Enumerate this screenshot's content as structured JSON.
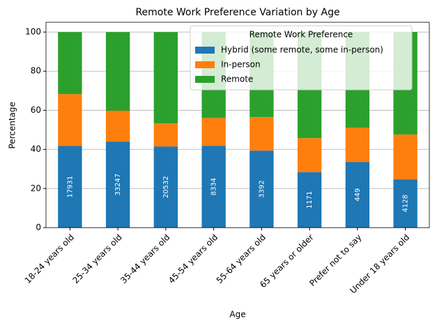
{
  "chart_data": {
    "type": "stacked_bar",
    "title": "Remote Work Preference Variation by Age",
    "x_label": "Age",
    "y_label": "Percentage",
    "categories": [
      "18-24 years old",
      "25-34 years old",
      "35-44 years old",
      "45-54 years old",
      "55-64 years old",
      "65 years or older",
      "Prefer not to say",
      "Under 18 years old"
    ],
    "series": [
      {
        "name": "Hybrid (some remote, some in-person)",
        "color": "#1f77b4",
        "values": [
          41.8,
          44.0,
          41.5,
          41.9,
          39.4,
          28.4,
          33.6,
          24.7
        ]
      },
      {
        "name": "In-person",
        "color": "#ff7f0e",
        "values": [
          26.5,
          15.8,
          11.8,
          14.2,
          17.1,
          17.4,
          17.5,
          22.9
        ]
      },
      {
        "name": "Remote",
        "color": "#2ca02c",
        "values": [
          31.7,
          40.2,
          46.7,
          43.9,
          43.5,
          54.2,
          48.9,
          52.4
        ]
      }
    ],
    "counts": [
      17931,
      33247,
      20532,
      8334,
      3392,
      1171,
      449,
      4128
    ],
    "legend_title": "Remote Work Preference",
    "legend": "upper right",
    "ylim": [
      0,
      105
    ],
    "yticks": [
      0,
      20,
      40,
      60,
      80,
      100
    ],
    "grid": true
  }
}
